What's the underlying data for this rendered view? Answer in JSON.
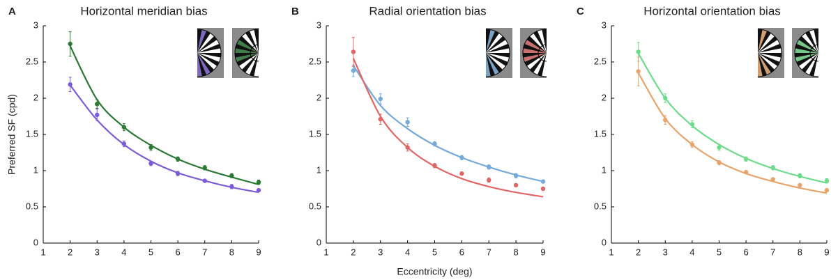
{
  "chart_data": [
    {
      "type": "scatter",
      "panel": "A",
      "title": "Horizontal meridian bias",
      "ylabel": "Preferred SF (cpd)",
      "x": [
        2,
        3,
        4,
        5,
        6,
        7,
        8,
        9
      ],
      "xlim": [
        1,
        9
      ],
      "xticks": [
        1,
        2,
        3,
        4,
        5,
        6,
        7,
        8,
        9
      ],
      "ylim": [
        0,
        3
      ],
      "yticks": [
        0,
        0.5,
        1,
        1.5,
        2,
        2.5,
        3
      ],
      "series": [
        {
          "color": "#2a7a35",
          "values": [
            2.75,
            1.92,
            1.6,
            1.32,
            1.16,
            1.04,
            0.93,
            0.84
          ],
          "errors": [
            0.17,
            0.06,
            0.05,
            0.04,
            0.03,
            0.03,
            0.03,
            0.03
          ],
          "fit": [
            2.72,
            1.98,
            1.6,
            1.35,
            1.16,
            1.02,
            0.91,
            0.81
          ]
        },
        {
          "color": "#7b5cd6",
          "values": [
            2.19,
            1.77,
            1.37,
            1.1,
            0.96,
            0.86,
            0.78,
            0.73
          ],
          "errors": [
            0.1,
            0.08,
            0.04,
            0.03,
            0.03,
            0.02,
            0.03,
            0.02
          ],
          "fit": [
            2.18,
            1.7,
            1.36,
            1.13,
            0.97,
            0.86,
            0.77,
            0.7
          ]
        }
      ]
    },
    {
      "type": "scatter",
      "panel": "B",
      "title": "Radial orientation bias",
      "xlabel": "Eccentricity (deg)",
      "x": [
        2,
        3,
        4,
        5,
        6,
        7,
        8,
        9
      ],
      "xlim": [
        1,
        9
      ],
      "xticks": [
        1,
        2,
        3,
        4,
        5,
        6,
        7,
        8,
        9
      ],
      "ylim": [
        0,
        3
      ],
      "yticks": [
        0,
        0.5,
        1,
        1.5,
        2,
        2.5,
        3
      ],
      "series": [
        {
          "color": "#74a9d8",
          "values": [
            2.38,
            1.99,
            1.67,
            1.37,
            1.18,
            1.05,
            0.93,
            0.85
          ],
          "errors": [
            0.08,
            0.07,
            0.06,
            0.03,
            0.03,
            0.03,
            0.03,
            0.02
          ],
          "fit": [
            2.45,
            1.9,
            1.58,
            1.35,
            1.18,
            1.05,
            0.94,
            0.85
          ]
        },
        {
          "color": "#e06666",
          "values": [
            2.64,
            1.71,
            1.32,
            1.07,
            0.96,
            0.87,
            0.8,
            0.75
          ],
          "errors": [
            0.2,
            0.07,
            0.05,
            0.03,
            0.02,
            0.03,
            0.02,
            0.02
          ],
          "fit": [
            2.55,
            1.75,
            1.32,
            1.06,
            0.89,
            0.78,
            0.7,
            0.64
          ]
        }
      ]
    },
    {
      "type": "scatter",
      "panel": "C",
      "title": "Horizontal orientation bias",
      "x": [
        2,
        3,
        4,
        5,
        6,
        7,
        8,
        9
      ],
      "xlim": [
        1,
        9
      ],
      "xticks": [
        1,
        2,
        3,
        4,
        5,
        6,
        7,
        8,
        9
      ],
      "ylim": [
        0,
        3
      ],
      "yticks": [
        0,
        0.5,
        1,
        1.5,
        2,
        2.5,
        3
      ],
      "series": [
        {
          "color": "#6ddc8a",
          "values": [
            2.64,
            2.0,
            1.64,
            1.32,
            1.16,
            1.04,
            0.93,
            0.86
          ],
          "errors": [
            0.13,
            0.06,
            0.05,
            0.04,
            0.03,
            0.03,
            0.03,
            0.03
          ],
          "fit": [
            2.62,
            2.0,
            1.62,
            1.36,
            1.17,
            1.03,
            0.92,
            0.83
          ]
        },
        {
          "color": "#e8a46a",
          "values": [
            2.37,
            1.7,
            1.36,
            1.11,
            0.98,
            0.88,
            0.8,
            0.73
          ],
          "errors": [
            0.2,
            0.06,
            0.04,
            0.03,
            0.02,
            0.02,
            0.02,
            0.02
          ],
          "fit": [
            2.35,
            1.72,
            1.36,
            1.12,
            0.96,
            0.85,
            0.76,
            0.69
          ]
        }
      ]
    }
  ]
}
